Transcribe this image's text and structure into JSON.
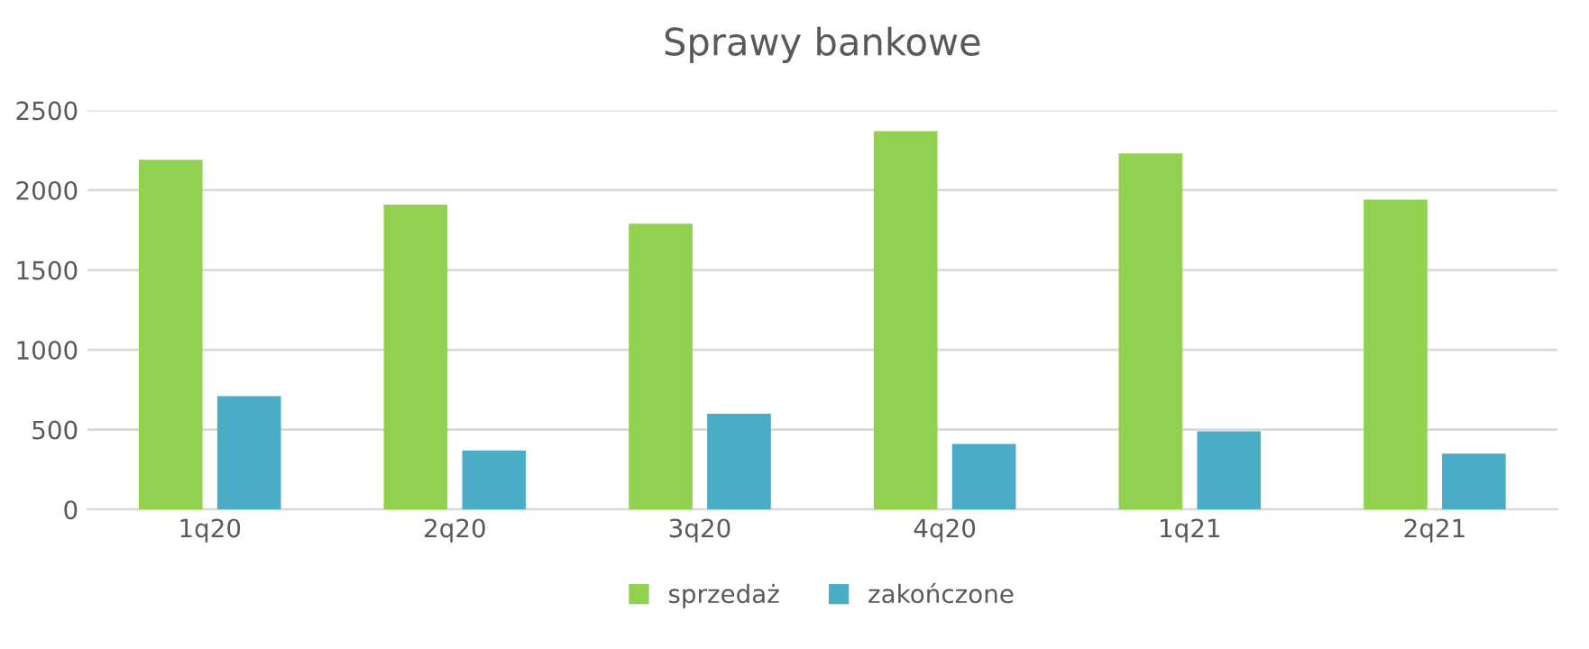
{
  "chart_data": {
    "type": "bar",
    "title": "Sprawy bankowe",
    "categories": [
      "1q20",
      "2q20",
      "3q20",
      "4q20",
      "1q21",
      "2q21"
    ],
    "series": [
      {
        "name": "sprzedaż",
        "color": "#92d050",
        "values": [
          2190,
          1910,
          1790,
          2370,
          2230,
          1940
        ]
      },
      {
        "name": "zakończone",
        "color": "#4bacc6",
        "values": [
          710,
          370,
          600,
          410,
          490,
          350
        ]
      }
    ],
    "ylim": [
      0,
      2500
    ],
    "yticks": [
      0,
      500,
      1000,
      1500,
      2000,
      2500
    ],
    "grid": "y",
    "legend": "bottom"
  }
}
